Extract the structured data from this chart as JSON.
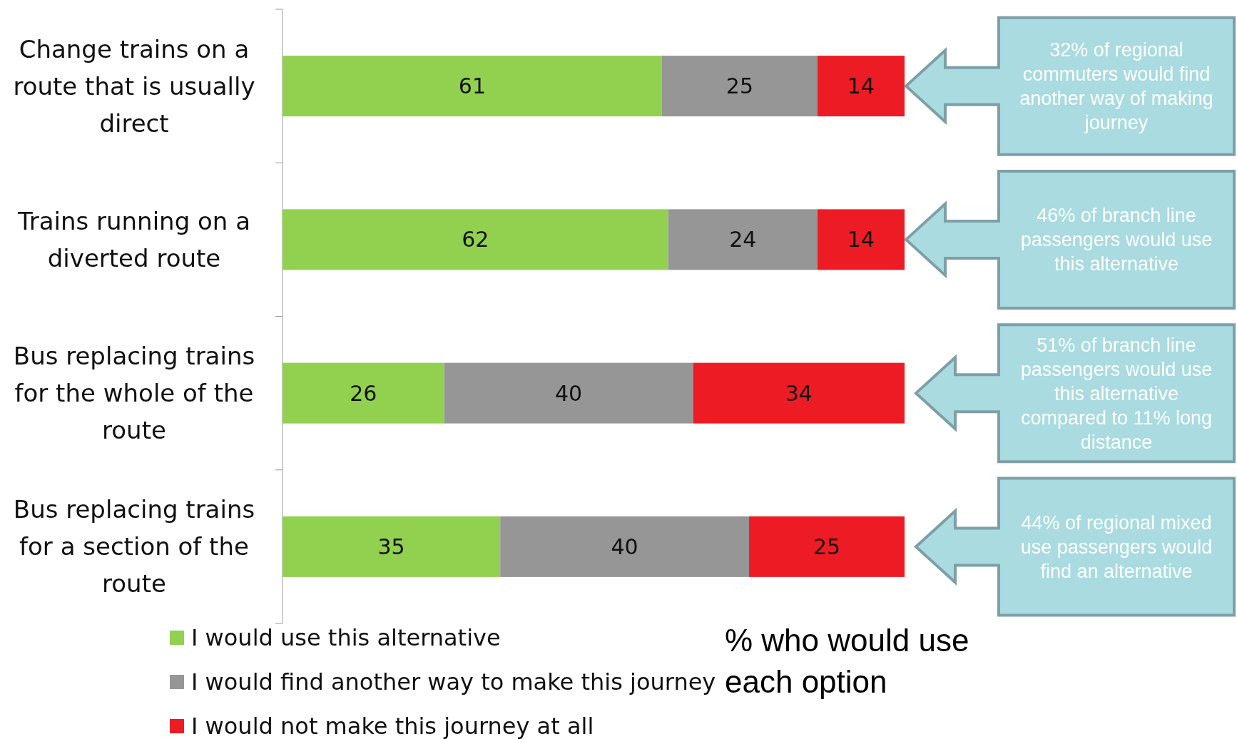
{
  "chart_data": {
    "type": "bar",
    "orientation": "horizontal",
    "stacked": true,
    "data_labels": true,
    "legend": "bottom left",
    "xlabel": "% who would use each option",
    "categories": [
      "Change trains on a route that is usually direct",
      "Trains running on a diverted route",
      "Bus replacing trains for the whole of the route",
      "Bus replacing trains for a section of the route"
    ],
    "series": [
      {
        "name": "I would use this alternative",
        "color": "#92d050",
        "values": [
          61,
          62,
          26,
          35
        ]
      },
      {
        "name": "I would find another way to make this journey",
        "color": "#969696",
        "values": [
          25,
          24,
          40,
          40
        ]
      },
      {
        "name": "I would not make this journey at all",
        "color": "#ed1c24",
        "values": [
          14,
          14,
          34,
          25
        ]
      }
    ],
    "annotations": [
      "32% of regional commuters would find another way of making journey",
      "46% of branch line passengers would use this alternative",
      "51% of branch line passengers would use this alternative compared to  11% long distance",
      "44% of regional mixed use passengers would find an alternative"
    ]
  }
}
